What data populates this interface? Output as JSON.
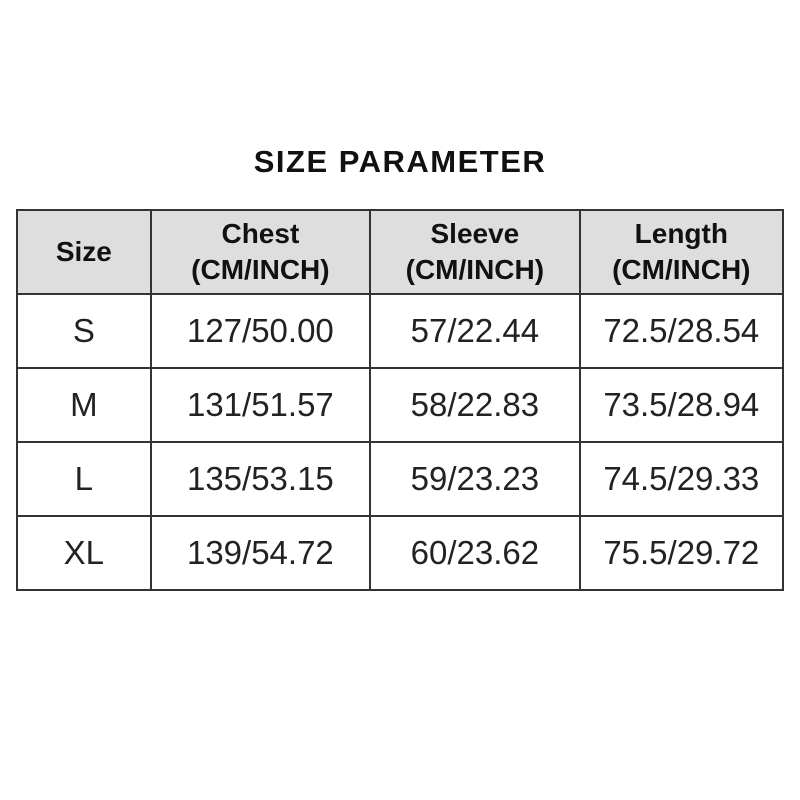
{
  "page": {
    "title": "SIZE PARAMETER",
    "background_color": "#ffffff"
  },
  "table": {
    "header_bg_color": "#dedede",
    "border_color": "#333333",
    "text_color": "#222222",
    "headers": [
      {
        "line1": "Size",
        "line2": ""
      },
      {
        "line1": "Chest",
        "line2": "(CM/INCH)"
      },
      {
        "line1": "Sleeve",
        "line2": "(CM/INCH)"
      },
      {
        "line1": "Length",
        "line2": "(CM/INCH)"
      }
    ]
  },
  "chart_data": {
    "type": "table",
    "title": "SIZE PARAMETER",
    "columns": [
      "Size",
      "Chest (CM/INCH)",
      "Sleeve (CM/INCH)",
      "Length (CM/INCH)"
    ],
    "rows": [
      [
        "S",
        "127/50.00",
        "57/22.44",
        "72.5/28.54"
      ],
      [
        "M",
        "131/51.57",
        "58/22.83",
        "73.5/28.94"
      ],
      [
        "L",
        "135/53.15",
        "59/23.23",
        "74.5/29.33"
      ],
      [
        "XL",
        "139/54.72",
        "60/23.62",
        "75.5/29.72"
      ]
    ]
  }
}
